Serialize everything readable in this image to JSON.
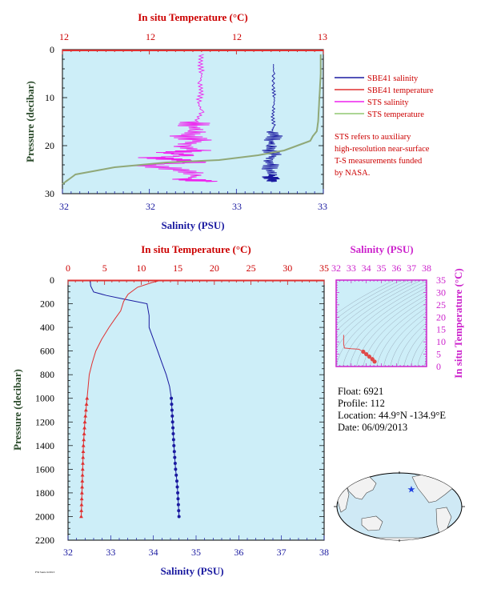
{
  "colors": {
    "plot_bg": "#cdeef8",
    "salinity": "#1a1aa0",
    "temperature": "#e03030",
    "sts_salinity": "#ee22ee",
    "sts_temperature": "#90a878",
    "axis_red": "#cc0000",
    "axis_magenta": "#cc22cc"
  },
  "chart_data": [
    {
      "type": "line",
      "top_axis_label": "In situ Temperature (°C)",
      "top_ticks": [
        "12",
        "12",
        "12",
        "13"
      ],
      "xlabel": "Salinity (PSU)",
      "x_ticks": [
        "32",
        "32",
        "33",
        "33"
      ],
      "ylabel": "Pressure (decibar)",
      "y_ticks": [
        "0",
        "10",
        "20",
        "30"
      ],
      "ylim": [
        0,
        30
      ],
      "legend": [
        {
          "label": "SBE41 salinity",
          "color": "#1a1aa0"
        },
        {
          "label": "SBE41 temperature",
          "color": "#e03030"
        },
        {
          "label": "STS salinity",
          "color": "#ee22ee"
        },
        {
          "label": "STS temperature",
          "color": "#90a878"
        }
      ],
      "note": [
        "STS refers to auxiliary",
        "high-resolution near-surface",
        "T-S measurements funded",
        "by NASA."
      ],
      "series": [
        {
          "name": "SBE41 salinity",
          "x_norm": [
            0.809,
            0.809,
            0.808,
            0.813,
            0.81,
            0.806,
            0.811,
            0.802,
            0.815,
            0.8,
            0.803,
            0.795,
            0.812,
            0.786,
            0.8,
            0.792,
            0.81,
            0.795,
            0.805,
            0.8
          ],
          "y": [
            3,
            5,
            8,
            10,
            12,
            14,
            16,
            17,
            18,
            19,
            20,
            21,
            22,
            23,
            24,
            25,
            26,
            26.5,
            27,
            27.5
          ]
        },
        {
          "name": "STS salinity",
          "x_norm": [
            0.533,
            0.528,
            0.535,
            0.527,
            0.533,
            0.52,
            0.535,
            0.51,
            0.5,
            0.52,
            0.47,
            0.52,
            0.45,
            0.51,
            0.4,
            0.5,
            0.35,
            0.45,
            0.52,
            0.3,
            0.45,
            0.52,
            0.48,
            0.55
          ],
          "y": [
            1,
            3,
            5,
            7,
            9,
            11,
            13,
            15,
            16,
            17,
            18,
            19,
            20,
            21,
            21.5,
            22,
            22.5,
            23,
            23.5,
            24,
            25,
            26,
            27,
            27.5
          ]
        },
        {
          "name": "STS temperature",
          "x_norm": [
            0.99,
            0.99,
            0.985,
            0.98,
            0.975,
            0.96,
            0.95,
            0.9,
            0.85,
            0.75,
            0.6,
            0.4,
            0.2,
            0.05,
            0.0
          ],
          "y": [
            1,
            5,
            10,
            15,
            17,
            18,
            19,
            20,
            21,
            22,
            23,
            23.5,
            24.5,
            26,
            28
          ]
        }
      ]
    },
    {
      "type": "line",
      "top_axis_label": "In situ Temperature (°C)",
      "top_ticks": [
        "0",
        "5",
        "10",
        "15",
        "20",
        "25",
        "30",
        "35"
      ],
      "xlabel": "Salinity (PSU)",
      "x_ticks": [
        "32",
        "33",
        "34",
        "35",
        "36",
        "37",
        "38"
      ],
      "ylabel": "Pressure (decibar)",
      "y_ticks": [
        "0",
        "200",
        "400",
        "600",
        "800",
        "1000",
        "1200",
        "1400",
        "1600",
        "1800",
        "2000",
        "2200"
      ],
      "xlim": [
        32,
        38
      ],
      "top_lim": [
        0,
        35
      ],
      "ylim": [
        0,
        2200
      ],
      "series": [
        {
          "name": "Salinity",
          "axis": "salinity",
          "x": [
            32.52,
            32.53,
            32.6,
            32.9,
            33.3,
            33.85,
            33.9,
            33.9,
            34.0,
            34.1,
            34.2,
            34.3,
            34.38,
            34.42,
            34.45,
            34.48,
            34.5,
            34.52,
            34.55,
            34.57,
            34.6
          ],
          "y": [
            0,
            50,
            100,
            130,
            160,
            200,
            300,
            400,
            500,
            600,
            700,
            800,
            900,
            1000,
            1200,
            1400,
            1500,
            1600,
            1700,
            1800,
            2000
          ]
        },
        {
          "name": "Temperature",
          "axis": "temperature",
          "x": [
            12.8,
            11.5,
            9.5,
            8.2,
            7.6,
            7.2,
            6.5,
            5.6,
            4.6,
            3.8,
            3.3,
            2.9,
            2.6,
            2.3,
            2.1,
            2.0,
            1.9,
            1.8
          ],
          "y": [
            0,
            20,
            60,
            120,
            180,
            260,
            320,
            400,
            500,
            600,
            700,
            800,
            1000,
            1200,
            1400,
            1600,
            1800,
            2000
          ]
        }
      ]
    },
    {
      "type": "scatter",
      "title": "Salinity (PSU)",
      "x_ticks": [
        "32",
        "33",
        "34",
        "35",
        "36",
        "37",
        "38"
      ],
      "xlim": [
        32,
        38
      ],
      "ylabel": "In situ Temperature (°C)",
      "y_ticks": [
        "0",
        "5",
        "10",
        "15",
        "20",
        "25",
        "30",
        "35"
      ],
      "ylim": [
        0,
        35
      ],
      "series": [
        {
          "name": "T-S",
          "x": [
            32.5,
            32.5,
            32.55,
            33.0,
            33.5,
            33.8,
            34.0,
            34.2,
            34.4,
            34.55
          ],
          "y": [
            12.8,
            9.0,
            7.5,
            7.2,
            7.0,
            6.0,
            5.0,
            4.0,
            3.0,
            2.0
          ]
        }
      ]
    }
  ],
  "float_info": {
    "float": "Float:  6921",
    "profile": "Profile:  112",
    "location": "Location:  44.9°N  -134.9°E",
    "date": "Date:  06/09/2013"
  },
  "footer": "FSI Santa 9/2013"
}
